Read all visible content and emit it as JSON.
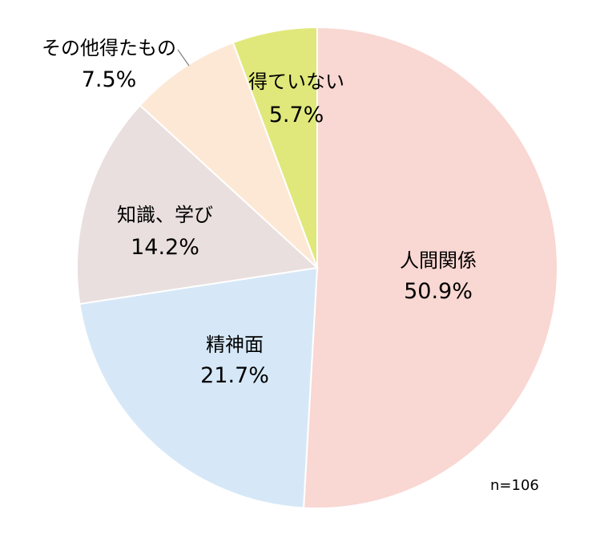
{
  "chart_data": {
    "type": "pie",
    "start": "12 o'clock",
    "direction": "clockwise",
    "slices": [
      {
        "label": "人間関係",
        "value": 50.9,
        "value_label": "50.9%",
        "color": "#F9D7D2"
      },
      {
        "label": "精神面",
        "value": 21.7,
        "value_label": "21.7%",
        "color": "#D6E8F7"
      },
      {
        "label": "知識、学び",
        "value": 14.2,
        "value_label": "14.2%",
        "color": "#E9DFDE"
      },
      {
        "label": "その他得たもの",
        "value": 7.5,
        "value_label": "7.5%",
        "color": "#FDE8D6"
      },
      {
        "label": "得ていない",
        "value": 5.7,
        "value_label": "5.7%",
        "color": "#E0E87B"
      }
    ],
    "note": "n=106"
  }
}
